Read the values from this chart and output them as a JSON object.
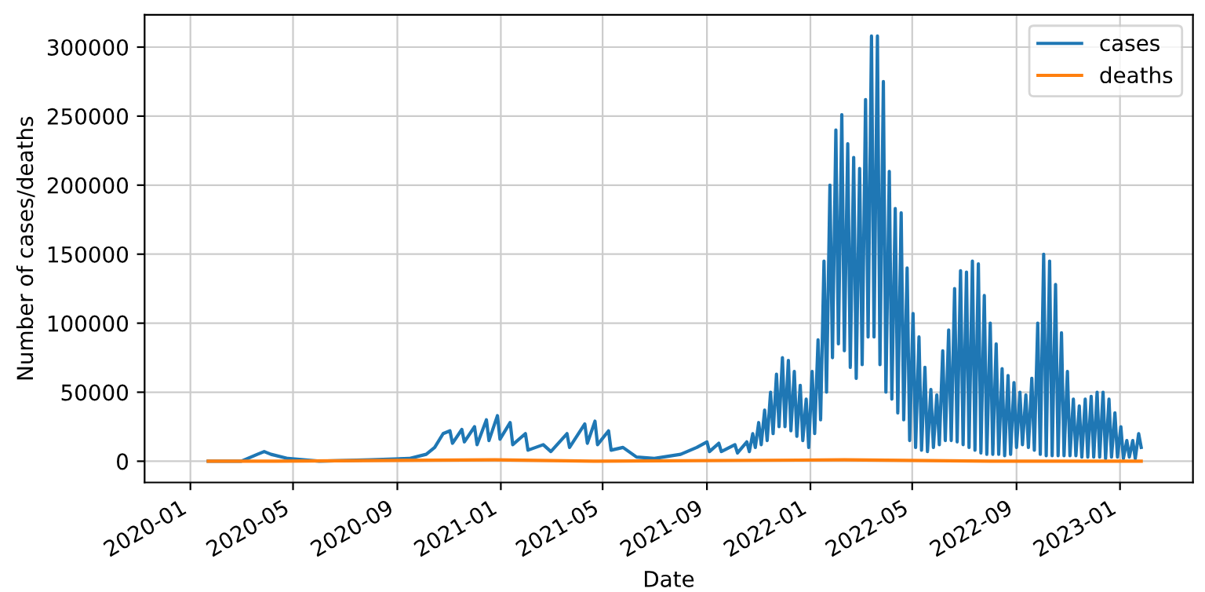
{
  "chart_data": {
    "type": "line",
    "xlabel": "Date",
    "ylabel": "Number of cases/deaths",
    "xlim": [
      "2019-11-08",
      "2023-03-28"
    ],
    "ylim": [
      -15400,
      323400
    ],
    "xticks": [
      {
        "value": "2020-01-01",
        "label": "2020-01"
      },
      {
        "value": "2020-05-01",
        "label": "2020-05"
      },
      {
        "value": "2020-09-01",
        "label": "2020-09"
      },
      {
        "value": "2021-01-01",
        "label": "2021-01"
      },
      {
        "value": "2021-05-01",
        "label": "2021-05"
      },
      {
        "value": "2021-09-01",
        "label": "2021-09"
      },
      {
        "value": "2022-01-01",
        "label": "2022-01"
      },
      {
        "value": "2022-05-01",
        "label": "2022-05"
      },
      {
        "value": "2022-09-01",
        "label": "2022-09"
      },
      {
        "value": "2023-01-01",
        "label": "2023-01"
      }
    ],
    "yticks": [
      0,
      50000,
      100000,
      150000,
      200000,
      250000,
      300000
    ],
    "grid": true,
    "legend": "top right",
    "series": [
      {
        "name": "cases",
        "color": "#1f77b4",
        "x": [
          "2020-01-22",
          "2020-03-01",
          "2020-03-20",
          "2020-03-28",
          "2020-04-05",
          "2020-04-25",
          "2020-06-01",
          "2020-08-01",
          "2020-09-15",
          "2020-10-05",
          "2020-10-15",
          "2020-10-25",
          "2020-11-02",
          "2020-11-05",
          "2020-11-16",
          "2020-11-19",
          "2020-12-01",
          "2020-12-04",
          "2020-12-15",
          "2020-12-18",
          "2020-12-28",
          "2020-12-31",
          "2021-01-12",
          "2021-01-15",
          "2021-01-30",
          "2021-02-02",
          "2021-02-20",
          "2021-03-01",
          "2021-03-20",
          "2021-03-23",
          "2021-04-10",
          "2021-04-13",
          "2021-04-22",
          "2021-04-25",
          "2021-05-08",
          "2021-05-11",
          "2021-05-25",
          "2021-06-10",
          "2021-07-01",
          "2021-08-01",
          "2021-08-20",
          "2021-09-01",
          "2021-09-04",
          "2021-09-15",
          "2021-09-18",
          "2021-10-04",
          "2021-10-07",
          "2021-10-18",
          "2021-10-21",
          "2021-10-25",
          "2021-10-28",
          "2021-11-01",
          "2021-11-04",
          "2021-11-08",
          "2021-11-11",
          "2021-11-15",
          "2021-11-18",
          "2021-11-22",
          "2021-11-25",
          "2021-11-29",
          "2021-12-02",
          "2021-12-06",
          "2021-12-09",
          "2021-12-13",
          "2021-12-16",
          "2021-12-20",
          "2021-12-23",
          "2021-12-27",
          "2021-12-30",
          "2022-01-03",
          "2022-01-06",
          "2022-01-10",
          "2022-01-13",
          "2022-01-17",
          "2022-01-20",
          "2022-01-24",
          "2022-01-27",
          "2022-01-31",
          "2022-02-03",
          "2022-02-07",
          "2022-02-10",
          "2022-02-14",
          "2022-02-17",
          "2022-02-21",
          "2022-02-24",
          "2022-02-28",
          "2022-03-03",
          "2022-03-07",
          "2022-03-10",
          "2022-03-14",
          "2022-03-17",
          "2022-03-21",
          "2022-03-24",
          "2022-03-28",
          "2022-03-31",
          "2022-04-04",
          "2022-04-07",
          "2022-04-11",
          "2022-04-14",
          "2022-04-18",
          "2022-04-21",
          "2022-04-25",
          "2022-04-28",
          "2022-05-02",
          "2022-05-05",
          "2022-05-09",
          "2022-05-12",
          "2022-05-16",
          "2022-05-19",
          "2022-05-23",
          "2022-05-26",
          "2022-05-30",
          "2022-06-02",
          "2022-06-06",
          "2022-06-09",
          "2022-06-13",
          "2022-06-16",
          "2022-06-20",
          "2022-06-23",
          "2022-06-27",
          "2022-06-30",
          "2022-07-04",
          "2022-07-07",
          "2022-07-11",
          "2022-07-14",
          "2022-07-18",
          "2022-07-21",
          "2022-07-25",
          "2022-07-28",
          "2022-08-01",
          "2022-08-04",
          "2022-08-08",
          "2022-08-11",
          "2022-08-15",
          "2022-08-18",
          "2022-08-22",
          "2022-08-25",
          "2022-08-29",
          "2022-09-01",
          "2022-09-05",
          "2022-09-08",
          "2022-09-12",
          "2022-09-15",
          "2022-09-19",
          "2022-09-22",
          "2022-09-26",
          "2022-09-29",
          "2022-10-03",
          "2022-10-06",
          "2022-10-10",
          "2022-10-13",
          "2022-10-17",
          "2022-10-20",
          "2022-10-24",
          "2022-10-27",
          "2022-10-31",
          "2022-11-03",
          "2022-11-07",
          "2022-11-10",
          "2022-11-14",
          "2022-11-17",
          "2022-11-21",
          "2022-11-24",
          "2022-11-28",
          "2022-12-01",
          "2022-12-05",
          "2022-12-08",
          "2022-12-12",
          "2022-12-15",
          "2022-12-19",
          "2022-12-22",
          "2022-12-26",
          "2022-12-29",
          "2023-01-02",
          "2023-01-05",
          "2023-01-09",
          "2023-01-12",
          "2023-01-16",
          "2023-01-19",
          "2023-01-23",
          "2023-01-26"
        ],
        "values": [
          0,
          0,
          5000,
          7000,
          5000,
          2000,
          0,
          1000,
          2000,
          5000,
          10000,
          20000,
          22000,
          13000,
          23000,
          14000,
          25000,
          12000,
          30000,
          15000,
          33000,
          16000,
          28000,
          12000,
          20000,
          8000,
          12000,
          7000,
          20000,
          10000,
          27000,
          13000,
          29000,
          12000,
          22000,
          8000,
          10000,
          3000,
          2000,
          5000,
          10000,
          14000,
          7000,
          13000,
          7000,
          12000,
          6000,
          14000,
          7000,
          20000,
          10000,
          28000,
          12000,
          37000,
          15000,
          50000,
          20000,
          63000,
          25000,
          75000,
          25000,
          73000,
          22000,
          65000,
          18000,
          55000,
          15000,
          45000,
          10000,
          65000,
          20000,
          88000,
          30000,
          145000,
          50000,
          200000,
          75000,
          240000,
          85000,
          251000,
          80000,
          230000,
          68000,
          220000,
          60000,
          212000,
          70000,
          262000,
          90000,
          308000,
          90000,
          308000,
          70000,
          275000,
          50000,
          210000,
          45000,
          183000,
          35000,
          180000,
          30000,
          140000,
          15000,
          107000,
          10000,
          90000,
          8000,
          68000,
          7000,
          52000,
          10000,
          48000,
          12000,
          80000,
          15000,
          95000,
          15000,
          125000,
          14000,
          138000,
          12000,
          137000,
          10000,
          145000,
          8000,
          143000,
          6000,
          120000,
          5000,
          100000,
          5000,
          85000,
          5000,
          67000,
          4000,
          62000,
          5000,
          57000,
          10000,
          50000,
          12000,
          48000,
          10000,
          60000,
          8000,
          100000,
          5000,
          150000,
          4000,
          145000,
          4000,
          128000,
          4000,
          93000,
          4000,
          65000,
          4000,
          45000,
          4000,
          40000,
          3000,
          45000,
          3000,
          47000,
          3000,
          50000,
          3000,
          50000,
          2000,
          45000,
          3000,
          35000,
          3000,
          25000,
          2000,
          15000,
          3000,
          15000,
          2000,
          20000,
          10000
        ]
      },
      {
        "name": "deaths",
        "color": "#ff7f0e",
        "x": [
          "2020-01-22",
          "2020-04-10",
          "2020-12-25",
          "2021-04-20",
          "2022-02-10",
          "2022-08-01",
          "2023-01-26"
        ],
        "values": [
          0,
          0,
          1000,
          0,
          1000,
          0,
          0
        ]
      }
    ]
  }
}
